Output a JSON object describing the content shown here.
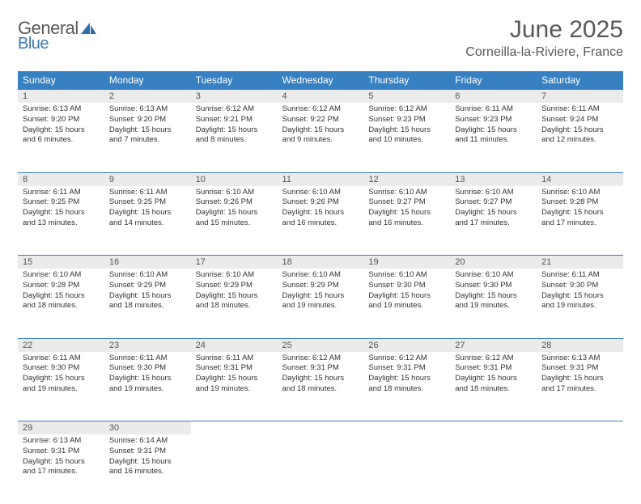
{
  "brand": {
    "text1": "General",
    "text2": "Blue",
    "text1_color": "#595959",
    "text2_color": "#3a7ab8",
    "icon_color": "#2f6fa8"
  },
  "title": "June 2025",
  "location": "Corneilla-la-Riviere, France",
  "header_bg": "#3781c2",
  "header_fg": "#ffffff",
  "daynum_bg": "#ebebeb",
  "rule_color": "#3781c2",
  "weekdays": [
    "Sunday",
    "Monday",
    "Tuesday",
    "Wednesday",
    "Thursday",
    "Friday",
    "Saturday"
  ],
  "weeks": [
    [
      {
        "n": "1",
        "sr": "6:13 AM",
        "ss": "9:20 PM",
        "dl": "15 hours and 6 minutes."
      },
      {
        "n": "2",
        "sr": "6:13 AM",
        "ss": "9:20 PM",
        "dl": "15 hours and 7 minutes."
      },
      {
        "n": "3",
        "sr": "6:12 AM",
        "ss": "9:21 PM",
        "dl": "15 hours and 8 minutes."
      },
      {
        "n": "4",
        "sr": "6:12 AM",
        "ss": "9:22 PM",
        "dl": "15 hours and 9 minutes."
      },
      {
        "n": "5",
        "sr": "6:12 AM",
        "ss": "9:23 PM",
        "dl": "15 hours and 10 minutes."
      },
      {
        "n": "6",
        "sr": "6:11 AM",
        "ss": "9:23 PM",
        "dl": "15 hours and 11 minutes."
      },
      {
        "n": "7",
        "sr": "6:11 AM",
        "ss": "9:24 PM",
        "dl": "15 hours and 12 minutes."
      }
    ],
    [
      {
        "n": "8",
        "sr": "6:11 AM",
        "ss": "9:25 PM",
        "dl": "15 hours and 13 minutes."
      },
      {
        "n": "9",
        "sr": "6:11 AM",
        "ss": "9:25 PM",
        "dl": "15 hours and 14 minutes."
      },
      {
        "n": "10",
        "sr": "6:10 AM",
        "ss": "9:26 PM",
        "dl": "15 hours and 15 minutes."
      },
      {
        "n": "11",
        "sr": "6:10 AM",
        "ss": "9:26 PM",
        "dl": "15 hours and 16 minutes."
      },
      {
        "n": "12",
        "sr": "6:10 AM",
        "ss": "9:27 PM",
        "dl": "15 hours and 16 minutes."
      },
      {
        "n": "13",
        "sr": "6:10 AM",
        "ss": "9:27 PM",
        "dl": "15 hours and 17 minutes."
      },
      {
        "n": "14",
        "sr": "6:10 AM",
        "ss": "9:28 PM",
        "dl": "15 hours and 17 minutes."
      }
    ],
    [
      {
        "n": "15",
        "sr": "6:10 AM",
        "ss": "9:28 PM",
        "dl": "15 hours and 18 minutes."
      },
      {
        "n": "16",
        "sr": "6:10 AM",
        "ss": "9:29 PM",
        "dl": "15 hours and 18 minutes."
      },
      {
        "n": "17",
        "sr": "6:10 AM",
        "ss": "9:29 PM",
        "dl": "15 hours and 18 minutes."
      },
      {
        "n": "18",
        "sr": "6:10 AM",
        "ss": "9:29 PM",
        "dl": "15 hours and 19 minutes."
      },
      {
        "n": "19",
        "sr": "6:10 AM",
        "ss": "9:30 PM",
        "dl": "15 hours and 19 minutes."
      },
      {
        "n": "20",
        "sr": "6:10 AM",
        "ss": "9:30 PM",
        "dl": "15 hours and 19 minutes."
      },
      {
        "n": "21",
        "sr": "6:11 AM",
        "ss": "9:30 PM",
        "dl": "15 hours and 19 minutes."
      }
    ],
    [
      {
        "n": "22",
        "sr": "6:11 AM",
        "ss": "9:30 PM",
        "dl": "15 hours and 19 minutes."
      },
      {
        "n": "23",
        "sr": "6:11 AM",
        "ss": "9:30 PM",
        "dl": "15 hours and 19 minutes."
      },
      {
        "n": "24",
        "sr": "6:11 AM",
        "ss": "9:31 PM",
        "dl": "15 hours and 19 minutes."
      },
      {
        "n": "25",
        "sr": "6:12 AM",
        "ss": "9:31 PM",
        "dl": "15 hours and 18 minutes."
      },
      {
        "n": "26",
        "sr": "6:12 AM",
        "ss": "9:31 PM",
        "dl": "15 hours and 18 minutes."
      },
      {
        "n": "27",
        "sr": "6:12 AM",
        "ss": "9:31 PM",
        "dl": "15 hours and 18 minutes."
      },
      {
        "n": "28",
        "sr": "6:13 AM",
        "ss": "9:31 PM",
        "dl": "15 hours and 17 minutes."
      }
    ],
    [
      {
        "n": "29",
        "sr": "6:13 AM",
        "ss": "9:31 PM",
        "dl": "15 hours and 17 minutes."
      },
      {
        "n": "30",
        "sr": "6:14 AM",
        "ss": "9:31 PM",
        "dl": "15 hours and 16 minutes."
      },
      null,
      null,
      null,
      null,
      null
    ]
  ],
  "labels": {
    "sunrise": "Sunrise: ",
    "sunset": "Sunset: ",
    "daylight": "Daylight: "
  }
}
